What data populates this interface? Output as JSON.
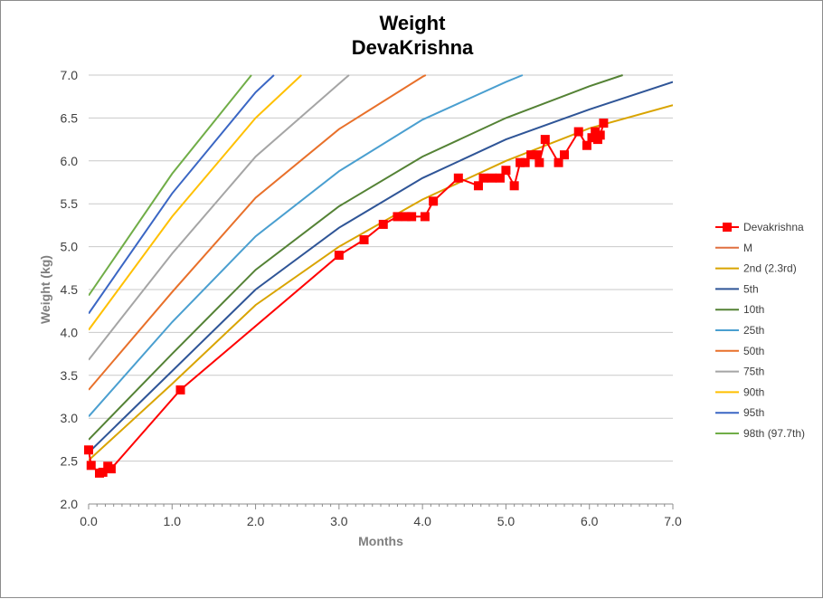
{
  "chart_data": {
    "type": "line",
    "title": [
      "Weight",
      "DevaKrishna"
    ],
    "xlabel": "Months",
    "ylabel": "Weight (kg)",
    "xlim": [
      0,
      7
    ],
    "ylim": [
      2,
      7
    ],
    "x_ticks": [
      "0.0",
      "1.0",
      "2.0",
      "3.0",
      "4.0",
      "5.0",
      "6.0",
      "7.0"
    ],
    "y_ticks": [
      "2.0",
      "2.5",
      "3.0",
      "3.5",
      "4.0",
      "4.5",
      "5.0",
      "5.5",
      "6.0",
      "6.5",
      "7.0"
    ],
    "grid": "horizontal",
    "legend_position": "right",
    "series": [
      {
        "name": "Devakrishna",
        "color": "#ff0000",
        "marker": "square",
        "points": [
          [
            0.0,
            2.63
          ],
          [
            0.03,
            2.45
          ],
          [
            0.13,
            2.36
          ],
          [
            0.17,
            2.37
          ],
          [
            0.23,
            2.44
          ],
          [
            0.27,
            2.41
          ],
          [
            1.1,
            3.33
          ],
          [
            3.0,
            4.9
          ],
          [
            3.3,
            5.08
          ],
          [
            3.53,
            5.26
          ],
          [
            3.7,
            5.35
          ],
          [
            3.8,
            5.35
          ],
          [
            3.87,
            5.35
          ],
          [
            4.03,
            5.35
          ],
          [
            4.13,
            5.53
          ],
          [
            4.43,
            5.8
          ],
          [
            4.67,
            5.71
          ],
          [
            4.73,
            5.8
          ],
          [
            4.83,
            5.8
          ],
          [
            4.93,
            5.8
          ],
          [
            5.0,
            5.89
          ],
          [
            5.1,
            5.71
          ],
          [
            5.17,
            5.98
          ],
          [
            5.23,
            5.98
          ],
          [
            5.3,
            6.07
          ],
          [
            5.37,
            6.07
          ],
          [
            5.4,
            5.98
          ],
          [
            5.47,
            6.25
          ],
          [
            5.63,
            5.98
          ],
          [
            5.7,
            6.07
          ],
          [
            5.87,
            6.34
          ],
          [
            5.97,
            6.18
          ],
          [
            6.03,
            6.27
          ],
          [
            6.07,
            6.34
          ],
          [
            6.1,
            6.25
          ],
          [
            6.13,
            6.3
          ],
          [
            6.17,
            6.44
          ]
        ]
      },
      {
        "name": "M",
        "color": "#e07040",
        "marker": "none",
        "points": []
      },
      {
        "name": "2nd (2.3rd)",
        "color": "#d9a400",
        "marker": "none",
        "points": [
          [
            0,
            2.51
          ],
          [
            1,
            3.4
          ],
          [
            2,
            4.32
          ],
          [
            3,
            5.0
          ],
          [
            4,
            5.55
          ],
          [
            5,
            6.0
          ],
          [
            6,
            6.38
          ],
          [
            7,
            6.65
          ]
        ]
      },
      {
        "name": "5th",
        "color": "#2f5597",
        "marker": "none",
        "points": [
          [
            0,
            2.6
          ],
          [
            1,
            3.55
          ],
          [
            2,
            4.5
          ],
          [
            3,
            5.22
          ],
          [
            4,
            5.8
          ],
          [
            5,
            6.25
          ],
          [
            6,
            6.6
          ],
          [
            7,
            6.92
          ]
        ]
      },
      {
        "name": "10th",
        "color": "#548235",
        "marker": "none",
        "points": [
          [
            0,
            2.75
          ],
          [
            1,
            3.75
          ],
          [
            2,
            4.73
          ],
          [
            3,
            5.47
          ],
          [
            4,
            6.05
          ],
          [
            5,
            6.5
          ],
          [
            6,
            6.87
          ],
          [
            6.4,
            7.0
          ]
        ]
      },
      {
        "name": "25th",
        "color": "#4a9fd0",
        "marker": "none",
        "points": [
          [
            0,
            3.02
          ],
          [
            1,
            4.12
          ],
          [
            2,
            5.12
          ],
          [
            3,
            5.88
          ],
          [
            4,
            6.48
          ],
          [
            5,
            6.92
          ],
          [
            5.2,
            7.0
          ]
        ]
      },
      {
        "name": "50th",
        "color": "#e8702a",
        "marker": "none",
        "points": [
          [
            0,
            3.33
          ],
          [
            1,
            4.47
          ],
          [
            2,
            5.57
          ],
          [
            3,
            6.37
          ],
          [
            4,
            6.98
          ],
          [
            4.04,
            7.0
          ]
        ]
      },
      {
        "name": "75th",
        "color": "#a5a5a5",
        "marker": "none",
        "points": [
          [
            0,
            3.68
          ],
          [
            1,
            4.92
          ],
          [
            2,
            6.05
          ],
          [
            3,
            6.9
          ],
          [
            3.12,
            7.0
          ]
        ]
      },
      {
        "name": "90th",
        "color": "#ffc000",
        "marker": "none",
        "points": [
          [
            0,
            4.03
          ],
          [
            1,
            5.35
          ],
          [
            2,
            6.5
          ],
          [
            2.55,
            7.0
          ]
        ]
      },
      {
        "name": "95th",
        "color": "#3a66c4",
        "marker": "none",
        "points": [
          [
            0,
            4.22
          ],
          [
            1,
            5.62
          ],
          [
            2,
            6.8
          ],
          [
            2.22,
            7.0
          ]
        ]
      },
      {
        "name": "98th (97.7th)",
        "color": "#70ad47",
        "marker": "none",
        "points": [
          [
            0,
            4.43
          ],
          [
            1,
            5.85
          ],
          [
            1.95,
            7.0
          ]
        ]
      }
    ]
  }
}
